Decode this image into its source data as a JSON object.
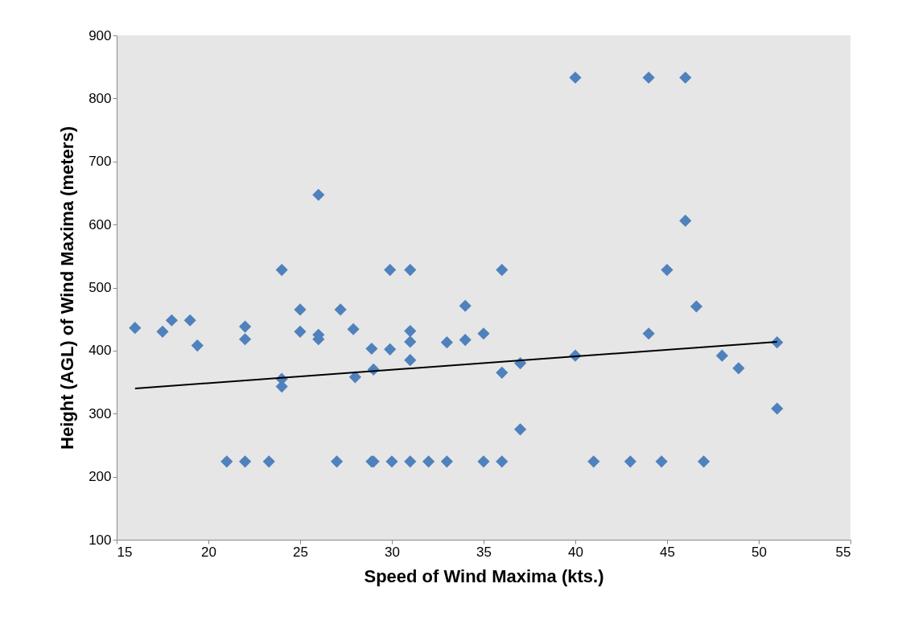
{
  "chart_data": {
    "type": "scatter",
    "xlabel": "Speed of Wind Maxima (kts.)",
    "ylabel": "Height (AGL) of Wind Maxima (meters)",
    "xlim": [
      15,
      55
    ],
    "xticks": [
      15,
      20,
      25,
      30,
      35,
      40,
      45,
      50,
      55
    ],
    "ylim": [
      100,
      900
    ],
    "yticks": [
      100,
      200,
      300,
      400,
      500,
      600,
      700,
      800,
      900
    ],
    "grid": false,
    "marker": "diamond",
    "series": [
      {
        "color": "#4f81bd",
        "x": [
          16,
          17.5,
          18,
          19,
          19.4,
          22,
          22,
          21,
          22,
          23.3,
          24,
          24,
          24,
          25,
          25,
          26,
          26,
          26,
          27,
          27.2,
          27.9,
          28,
          28.9,
          29,
          28.9,
          29,
          29.9,
          29.9,
          30,
          31,
          31,
          31,
          31,
          31,
          32,
          33,
          33,
          34,
          34,
          35,
          35,
          36,
          36,
          36,
          37,
          37,
          40,
          40,
          41,
          43,
          44,
          44,
          44.7,
          45,
          46,
          46,
          46.6,
          47,
          48,
          48.9,
          51,
          51
        ],
        "values": [
          436,
          430,
          448,
          448,
          408,
          438,
          418,
          224,
          224,
          224,
          355,
          343,
          528,
          465,
          430,
          647,
          425,
          418,
          224,
          465,
          434,
          358,
          224,
          224,
          403,
          370,
          528,
          402,
          224,
          528,
          431,
          414,
          385,
          224,
          224,
          413,
          224,
          471,
          417,
          427,
          224,
          528,
          365,
          224,
          380,
          275,
          833,
          392,
          224,
          224,
          833,
          427,
          224,
          528,
          833,
          606,
          470,
          224,
          392,
          372,
          413,
          308
        ]
      },
      {
        "type": "line",
        "marker": "none",
        "color": "#000000",
        "x": [
          16,
          51
        ],
        "values": [
          340,
          414
        ]
      }
    ]
  }
}
